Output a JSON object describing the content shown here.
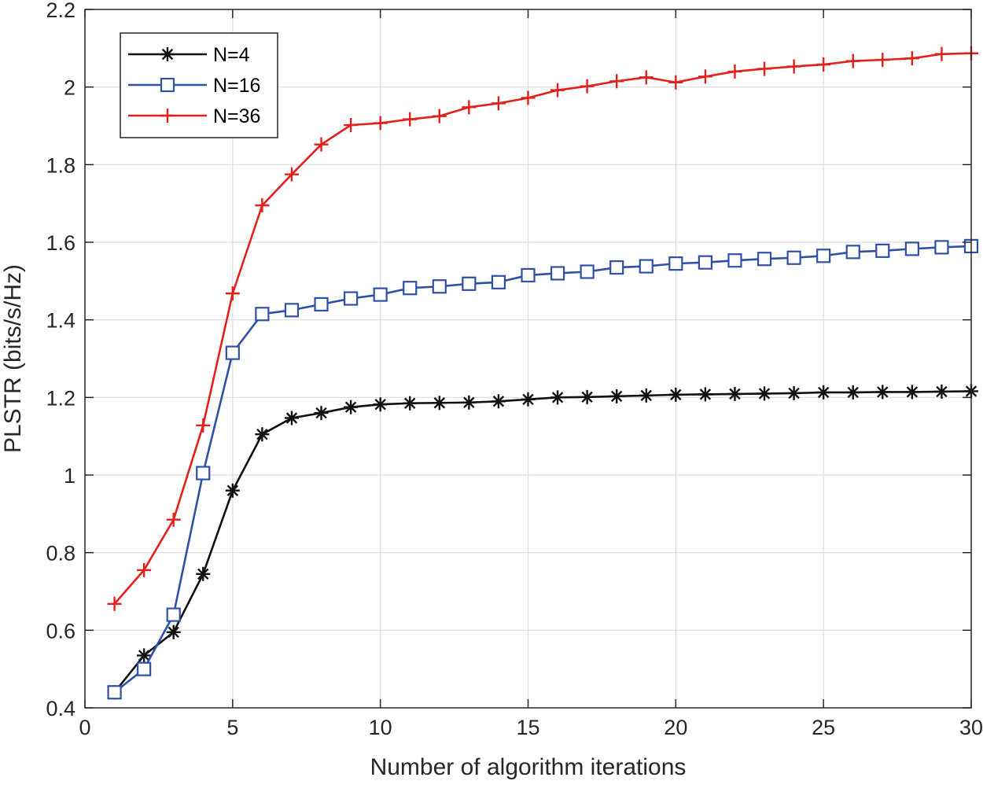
{
  "chart_data": {
    "type": "line",
    "title": "",
    "xlabel": "Number of algorithm iterations",
    "ylabel": "PLSTR (bits/s/Hz)",
    "xlim": [
      0,
      30
    ],
    "ylim": [
      0.4,
      2.2
    ],
    "xticks": [
      0,
      5,
      10,
      15,
      20,
      25,
      30
    ],
    "yticks": [
      0.4,
      0.6,
      0.8,
      1.0,
      1.2,
      1.4,
      1.6,
      1.8,
      2.0,
      2.2
    ],
    "xtick_labels": [
      "0",
      "5",
      "10",
      "15",
      "20",
      "25",
      "30"
    ],
    "ytick_labels": [
      "0.4",
      "0.6",
      "0.8",
      "1",
      "1.2",
      "1.4",
      "1.6",
      "1.8",
      "2",
      "2.2"
    ],
    "grid": true,
    "legend_position": "top-left",
    "x": [
      1,
      2,
      3,
      4,
      5,
      6,
      7,
      8,
      9,
      10,
      11,
      12,
      13,
      14,
      15,
      16,
      17,
      18,
      19,
      20,
      21,
      22,
      23,
      24,
      25,
      26,
      27,
      28,
      29,
      30
    ],
    "series": [
      {
        "name": "N=4",
        "color": "#111111",
        "marker": "asterisk",
        "values": [
          0.44,
          0.535,
          0.595,
          0.745,
          0.96,
          1.105,
          1.147,
          1.16,
          1.175,
          1.182,
          1.185,
          1.186,
          1.187,
          1.19,
          1.195,
          1.2,
          1.201,
          1.203,
          1.205,
          1.207,
          1.208,
          1.209,
          1.21,
          1.211,
          1.213,
          1.213,
          1.214,
          1.214,
          1.215,
          1.216
        ]
      },
      {
        "name": "N=16",
        "color": "#3050a8",
        "marker": "square",
        "values": [
          0.44,
          0.5,
          0.64,
          1.005,
          1.315,
          1.415,
          1.425,
          1.44,
          1.455,
          1.465,
          1.482,
          1.486,
          1.493,
          1.497,
          1.515,
          1.52,
          1.524,
          1.535,
          1.538,
          1.545,
          1.548,
          1.553,
          1.557,
          1.56,
          1.565,
          1.575,
          1.578,
          1.583,
          1.587,
          1.59
        ]
      },
      {
        "name": "N=36",
        "color": "#e3201b",
        "marker": "plus",
        "values": [
          0.668,
          0.755,
          0.885,
          1.128,
          1.468,
          1.695,
          1.775,
          1.852,
          1.902,
          1.907,
          1.917,
          1.925,
          1.948,
          1.958,
          1.972,
          1.992,
          2.002,
          2.015,
          2.025,
          2.012,
          2.027,
          2.04,
          2.047,
          2.053,
          2.058,
          2.067,
          2.07,
          2.074,
          2.085,
          2.087
        ]
      }
    ]
  }
}
